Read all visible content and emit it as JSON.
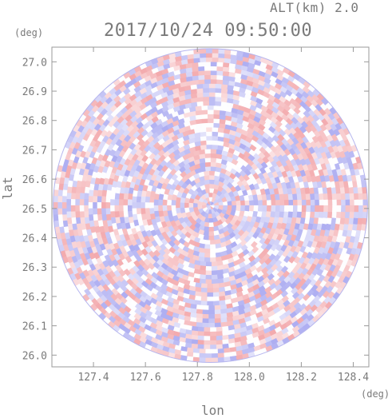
{
  "header": {
    "altitude_label": "ALT(km) 2.0",
    "timestamp": "2017/10/24 09:50:00"
  },
  "axes": {
    "x_unit": "(deg)",
    "y_unit": "(deg)",
    "x_title": "lon",
    "y_title": "lat"
  },
  "colors": {
    "positive": "#f4a0a4",
    "negative": "#a4a4f2",
    "axis": "#9a9a9a",
    "text": "#7a7a7a"
  },
  "chart_data": {
    "type": "heatmap",
    "title": "2017/10/24 09:50:00",
    "subtitle": "ALT(km) 2.0",
    "xlabel": "lon",
    "ylabel": "lat",
    "x_unit": "(deg)",
    "y_unit": "(deg)",
    "xlim": [
      127.24,
      128.46
    ],
    "ylim": [
      25.96,
      27.05
    ],
    "x_ticks": [
      127.4,
      127.6,
      127.8,
      128.0,
      128.2,
      128.4
    ],
    "y_ticks": [
      26.0,
      26.1,
      26.2,
      26.3,
      26.4,
      26.5,
      26.6,
      26.7,
      26.8,
      26.9,
      27.0
    ],
    "x_tick_labels": [
      "127.4",
      "127.6",
      "127.8",
      "128.0",
      "128.2",
      "128.4"
    ],
    "y_tick_labels": [
      "26.0",
      "26.1",
      "26.2",
      "26.3",
      "26.4",
      "26.5",
      "26.6",
      "26.7",
      "26.8",
      "26.9",
      "27.0"
    ],
    "radar_center": {
      "lon": 127.85,
      "lat": 26.51
    },
    "radar_extent": {
      "lon_min": 127.25,
      "lon_max": 128.46,
      "lat_min": 25.97,
      "lat_max": 27.04
    },
    "grid": false,
    "legend": "none",
    "colormap": {
      "positive": "red",
      "negative": "blue",
      "near_zero": "white"
    }
  }
}
